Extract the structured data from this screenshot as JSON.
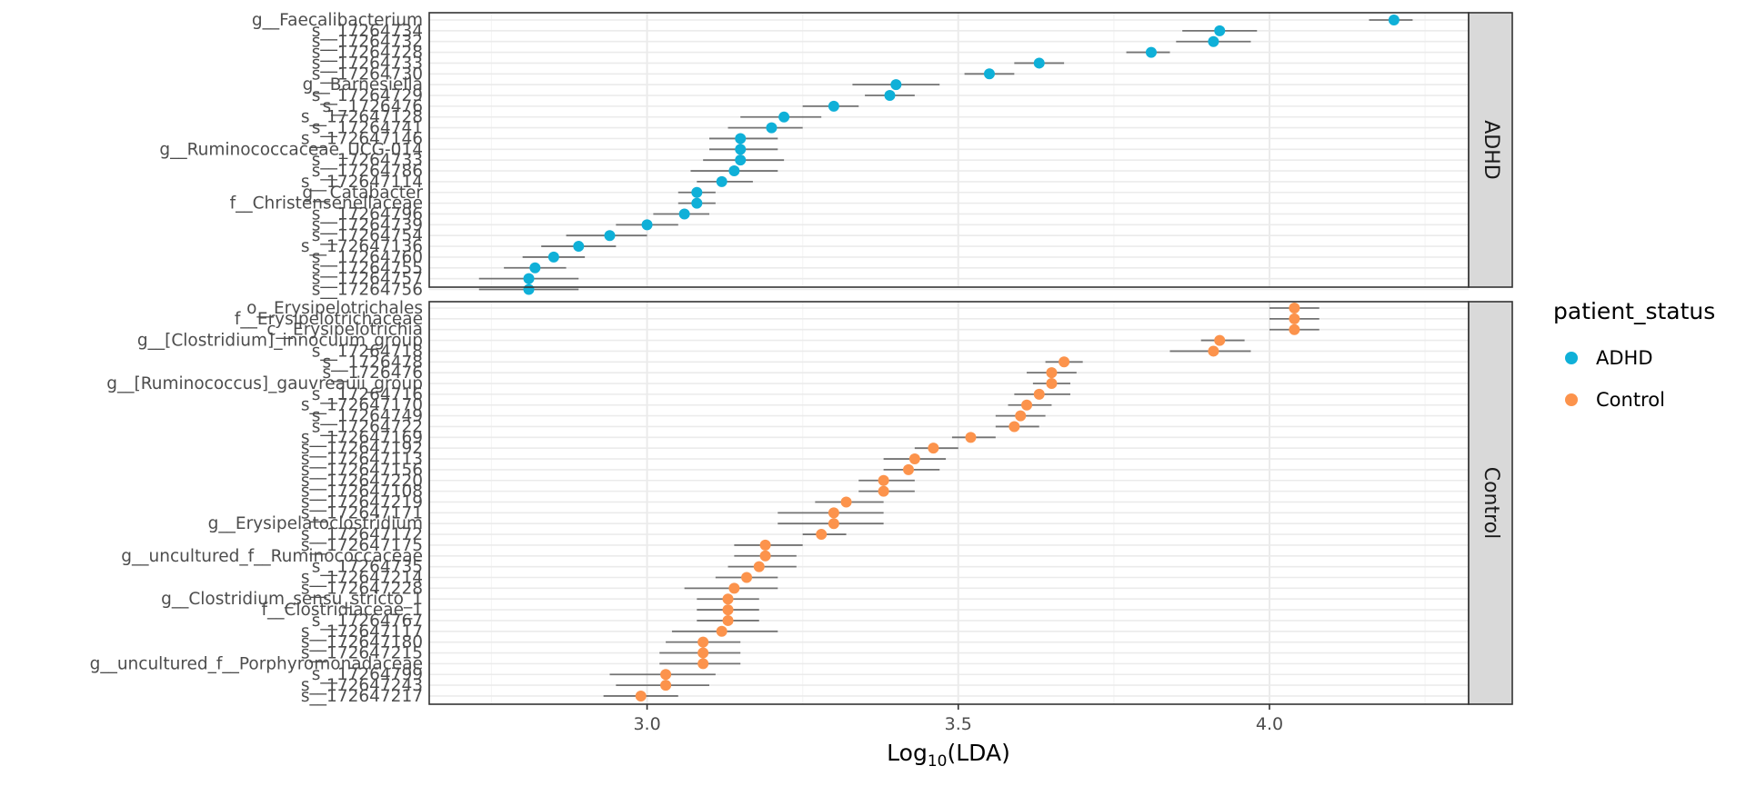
{
  "chart_data": {
    "type": "scatter",
    "xlabel": "Log",
    "xlabel_sub": "10",
    "xlabel_suffix": "(LDA)",
    "xlim": [
      2.65,
      4.32
    ],
    "xticks": [
      3.0,
      3.5,
      4.0
    ],
    "xtick_labels": [
      "3.0",
      "3.5",
      "4.0"
    ],
    "grid": true,
    "legend": {
      "title": "patient_status",
      "position": "right",
      "entries": [
        "ADHD",
        "Control"
      ]
    },
    "colors": {
      "ADHD": "#0fb0d8",
      "Control": "#fc934c",
      "errorbar": "#737373",
      "strip_bg": "#d9d9d9",
      "grid_major": "#ebebeb",
      "grid_minor": "#f5f5f5",
      "panel_border": "#333333"
    },
    "panels": [
      {
        "name": "ADHD",
        "points": [
          {
            "label": "g__Faecalibacterium",
            "x": 4.2,
            "lo": 4.16,
            "hi": 4.23
          },
          {
            "label": "s__17264734",
            "x": 3.92,
            "lo": 3.86,
            "hi": 3.98
          },
          {
            "label": "s__17264732",
            "x": 3.91,
            "lo": 3.85,
            "hi": 3.97
          },
          {
            "label": "s__17264728",
            "x": 3.81,
            "lo": 3.77,
            "hi": 3.84
          },
          {
            "label": "s__17264733",
            "x": 3.63,
            "lo": 3.59,
            "hi": 3.67
          },
          {
            "label": "s__17264730",
            "x": 3.55,
            "lo": 3.51,
            "hi": 3.59
          },
          {
            "label": "g__Barnesiella",
            "x": 3.4,
            "lo": 3.33,
            "hi": 3.47
          },
          {
            "label": "s__17264729",
            "x": 3.39,
            "lo": 3.35,
            "hi": 3.43
          },
          {
            "label": "s__1726476",
            "x": 3.3,
            "lo": 3.25,
            "hi": 3.34
          },
          {
            "label": "s__172647128",
            "x": 3.22,
            "lo": 3.15,
            "hi": 3.28
          },
          {
            "label": "s__17264741",
            "x": 3.2,
            "lo": 3.13,
            "hi": 3.25
          },
          {
            "label": "s__172647146",
            "x": 3.15,
            "lo": 3.1,
            "hi": 3.21
          },
          {
            "label": "g__Ruminococcaceae_UCG-014",
            "x": 3.15,
            "lo": 3.1,
            "hi": 3.21
          },
          {
            "label": "s__17264733",
            "x": 3.15,
            "lo": 3.09,
            "hi": 3.22
          },
          {
            "label": "s__17264786",
            "x": 3.14,
            "lo": 3.07,
            "hi": 3.21
          },
          {
            "label": "s__172647114",
            "x": 3.12,
            "lo": 3.08,
            "hi": 3.17
          },
          {
            "label": "g__Catabacter",
            "x": 3.08,
            "lo": 3.05,
            "hi": 3.11
          },
          {
            "label": "f__Christensenellaceae",
            "x": 3.08,
            "lo": 3.05,
            "hi": 3.11
          },
          {
            "label": "s__17264796",
            "x": 3.06,
            "lo": 3.01,
            "hi": 3.1
          },
          {
            "label": "s__17264739",
            "x": 3.0,
            "lo": 2.95,
            "hi": 3.05
          },
          {
            "label": "s__17264754",
            "x": 2.94,
            "lo": 2.87,
            "hi": 3.0
          },
          {
            "label": "s__172647136",
            "x": 2.89,
            "lo": 2.83,
            "hi": 2.95
          },
          {
            "label": "s__17264760",
            "x": 2.85,
            "lo": 2.8,
            "hi": 2.9
          },
          {
            "label": "s__17264755",
            "x": 2.82,
            "lo": 2.77,
            "hi": 2.87
          },
          {
            "label": "s__17264757",
            "x": 2.81,
            "lo": 2.73,
            "hi": 2.89
          },
          {
            "label": "s__17264756",
            "x": 2.81,
            "lo": 2.73,
            "hi": 2.89
          }
        ]
      },
      {
        "name": "Control",
        "points": [
          {
            "label": "o__Erysipelotrichales",
            "x": 4.04,
            "lo": 4.0,
            "hi": 4.08
          },
          {
            "label": "f__Erysipelotrichaceae",
            "x": 4.04,
            "lo": 4.0,
            "hi": 4.08
          },
          {
            "label": "c__Erysipelotrichia",
            "x": 4.04,
            "lo": 4.0,
            "hi": 4.08
          },
          {
            "label": "g__[Clostridium]_innocuum_group",
            "x": 3.92,
            "lo": 3.89,
            "hi": 3.96
          },
          {
            "label": "s__17264718",
            "x": 3.91,
            "lo": 3.84,
            "hi": 3.97
          },
          {
            "label": "s__1726478",
            "x": 3.67,
            "lo": 3.64,
            "hi": 3.7
          },
          {
            "label": "s__1726476",
            "x": 3.65,
            "lo": 3.61,
            "hi": 3.69
          },
          {
            "label": "g__[Ruminococcus]_gauvreauii_group",
            "x": 3.65,
            "lo": 3.62,
            "hi": 3.68
          },
          {
            "label": "s__17264716",
            "x": 3.63,
            "lo": 3.59,
            "hi": 3.68
          },
          {
            "label": "s__172647170",
            "x": 3.61,
            "lo": 3.58,
            "hi": 3.65
          },
          {
            "label": "s__17264749",
            "x": 3.6,
            "lo": 3.56,
            "hi": 3.64
          },
          {
            "label": "s__17264722",
            "x": 3.59,
            "lo": 3.56,
            "hi": 3.63
          },
          {
            "label": "s__172647169",
            "x": 3.52,
            "lo": 3.49,
            "hi": 3.56
          },
          {
            "label": "s__172647192",
            "x": 3.46,
            "lo": 3.43,
            "hi": 3.5
          },
          {
            "label": "s__172647113",
            "x": 3.43,
            "lo": 3.38,
            "hi": 3.48
          },
          {
            "label": "s__172647156",
            "x": 3.42,
            "lo": 3.38,
            "hi": 3.47
          },
          {
            "label": "s__172647220",
            "x": 3.38,
            "lo": 3.34,
            "hi": 3.43
          },
          {
            "label": "s__172647108",
            "x": 3.38,
            "lo": 3.34,
            "hi": 3.43
          },
          {
            "label": "s__172647219",
            "x": 3.32,
            "lo": 3.27,
            "hi": 3.38
          },
          {
            "label": "s__172647171",
            "x": 3.3,
            "lo": 3.21,
            "hi": 3.38
          },
          {
            "label": "g__Erysipelatoclostridium",
            "x": 3.3,
            "lo": 3.21,
            "hi": 3.38
          },
          {
            "label": "s__172647172",
            "x": 3.28,
            "lo": 3.25,
            "hi": 3.32
          },
          {
            "label": "s__172647175",
            "x": 3.19,
            "lo": 3.14,
            "hi": 3.25
          },
          {
            "label": "g__uncultured_f__Ruminococcaceae",
            "x": 3.19,
            "lo": 3.14,
            "hi": 3.24
          },
          {
            "label": "s__17264735",
            "x": 3.18,
            "lo": 3.13,
            "hi": 3.24
          },
          {
            "label": "s__172647214",
            "x": 3.16,
            "lo": 3.11,
            "hi": 3.21
          },
          {
            "label": "s__172647228",
            "x": 3.14,
            "lo": 3.06,
            "hi": 3.21
          },
          {
            "label": "g__Clostridium_sensu_stricto_1",
            "x": 3.13,
            "lo": 3.08,
            "hi": 3.18
          },
          {
            "label": "f__Clostridiaceae_1",
            "x": 3.13,
            "lo": 3.08,
            "hi": 3.18
          },
          {
            "label": "s__17264767",
            "x": 3.13,
            "lo": 3.08,
            "hi": 3.18
          },
          {
            "label": "s__172647117",
            "x": 3.12,
            "lo": 3.04,
            "hi": 3.21
          },
          {
            "label": "s__172647180",
            "x": 3.09,
            "lo": 3.03,
            "hi": 3.15
          },
          {
            "label": "s__172647215",
            "x": 3.09,
            "lo": 3.02,
            "hi": 3.15
          },
          {
            "label": "g__uncultured_f__Porphyromonadaceae",
            "x": 3.09,
            "lo": 3.02,
            "hi": 3.15
          },
          {
            "label": "s__17264799",
            "x": 3.03,
            "lo": 2.94,
            "hi": 3.11
          },
          {
            "label": "s__172647243",
            "x": 3.03,
            "lo": 2.95,
            "hi": 3.1
          },
          {
            "label": "s__172647217",
            "x": 2.99,
            "lo": 2.93,
            "hi": 3.05
          }
        ]
      }
    ]
  }
}
